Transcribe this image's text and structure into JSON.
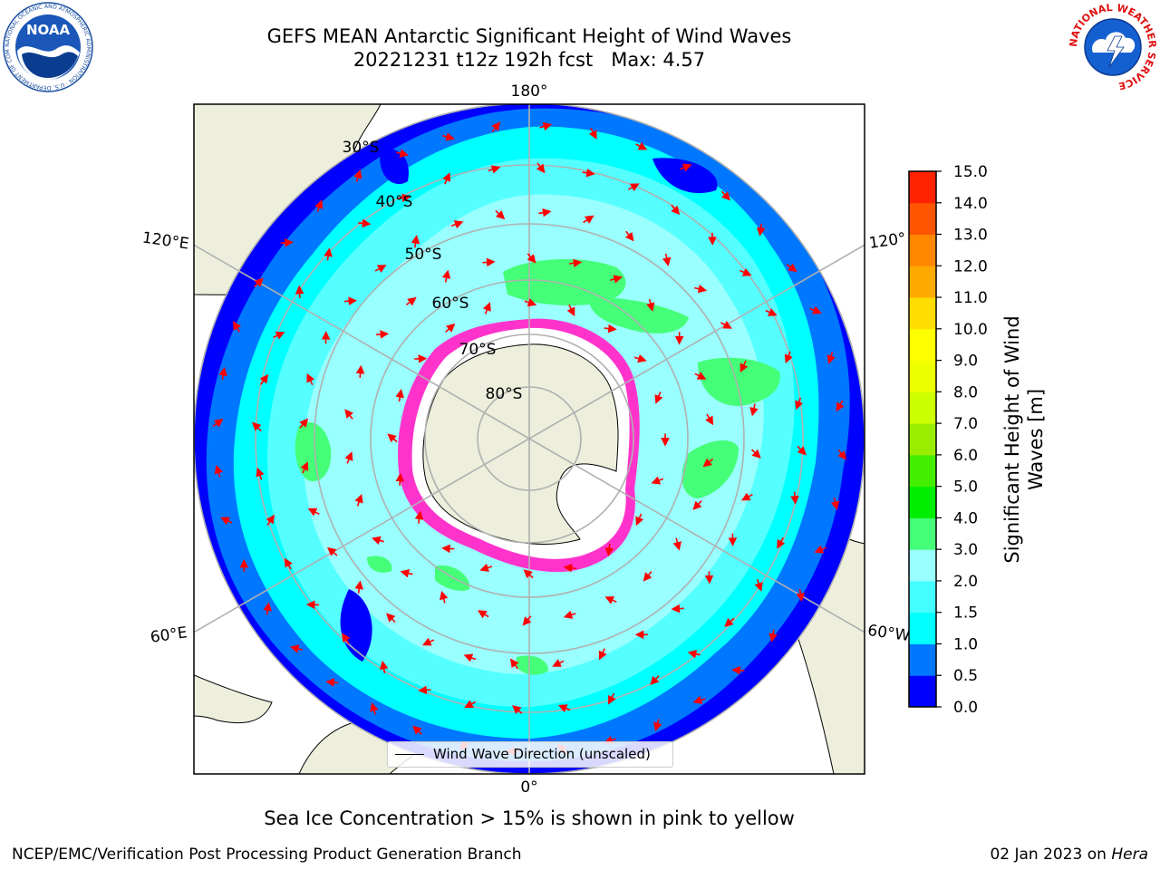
{
  "header": {
    "title_line1": "GEFS MEAN Antarctic Significant Height of Wind Waves",
    "title_line2": "20221231 t12z 192h fcst   Max: 4.57"
  },
  "logos": {
    "left": {
      "name": "noaa-logo",
      "text": "NOAA",
      "ring_text": "NATIONAL OCEANIC AND ATMOSPHERIC ADMINISTRATION · U.S. DEPARTMENT OF COMMERCE"
    },
    "right": {
      "name": "nws-logo",
      "ring_text": "NATIONAL WEATHER SERVICE"
    }
  },
  "map": {
    "projection": "south-polar-stereographic",
    "longitude_labels": [
      "180°",
      "120°E",
      "120°",
      "60°E",
      "60°W",
      "0°"
    ],
    "latitude_labels": [
      "30°S",
      "40°S",
      "50°S",
      "60°S",
      "70°S",
      "80°S"
    ],
    "colors": {
      "land": "#eeeedd",
      "sea_ice": "#ffffff",
      "sea_ice_edge": "#ff33cc",
      "arrows": "#ff0000",
      "grid": "#b0b0b0"
    },
    "legend_label": "Wind Wave Direction (unscaled)"
  },
  "colorbar": {
    "label": "Significant Height of Wind Waves [m]",
    "label_line1": "Significant Height of Wind",
    "label_line2": "Waves [m]",
    "ticks": [
      "0.0",
      "0.5",
      "1.0",
      "1.5",
      "2.0",
      "3.0",
      "4.0",
      "5.0",
      "6.0",
      "7.0",
      "8.0",
      "9.0",
      "10.0",
      "11.0",
      "12.0",
      "13.0",
      "14.0",
      "15.0"
    ],
    "colors": [
      "#0000ff",
      "#0077ff",
      "#00ffff",
      "#44ffff",
      "#99ffff",
      "#44ff77",
      "#00ee00",
      "#44ee00",
      "#99ee00",
      "#ccff00",
      "#eeff00",
      "#ffff00",
      "#ffdd00",
      "#ffaa00",
      "#ff8800",
      "#ff5500",
      "#ff2200"
    ]
  },
  "caption": "Sea Ice Concentration > 15% is shown in pink to yellow",
  "footer": {
    "left": "NCEP/EMC/Verification Post Processing Product Generation Branch",
    "right_prefix": "02 Jan 2023 on ",
    "right_italic": "Hera"
  }
}
